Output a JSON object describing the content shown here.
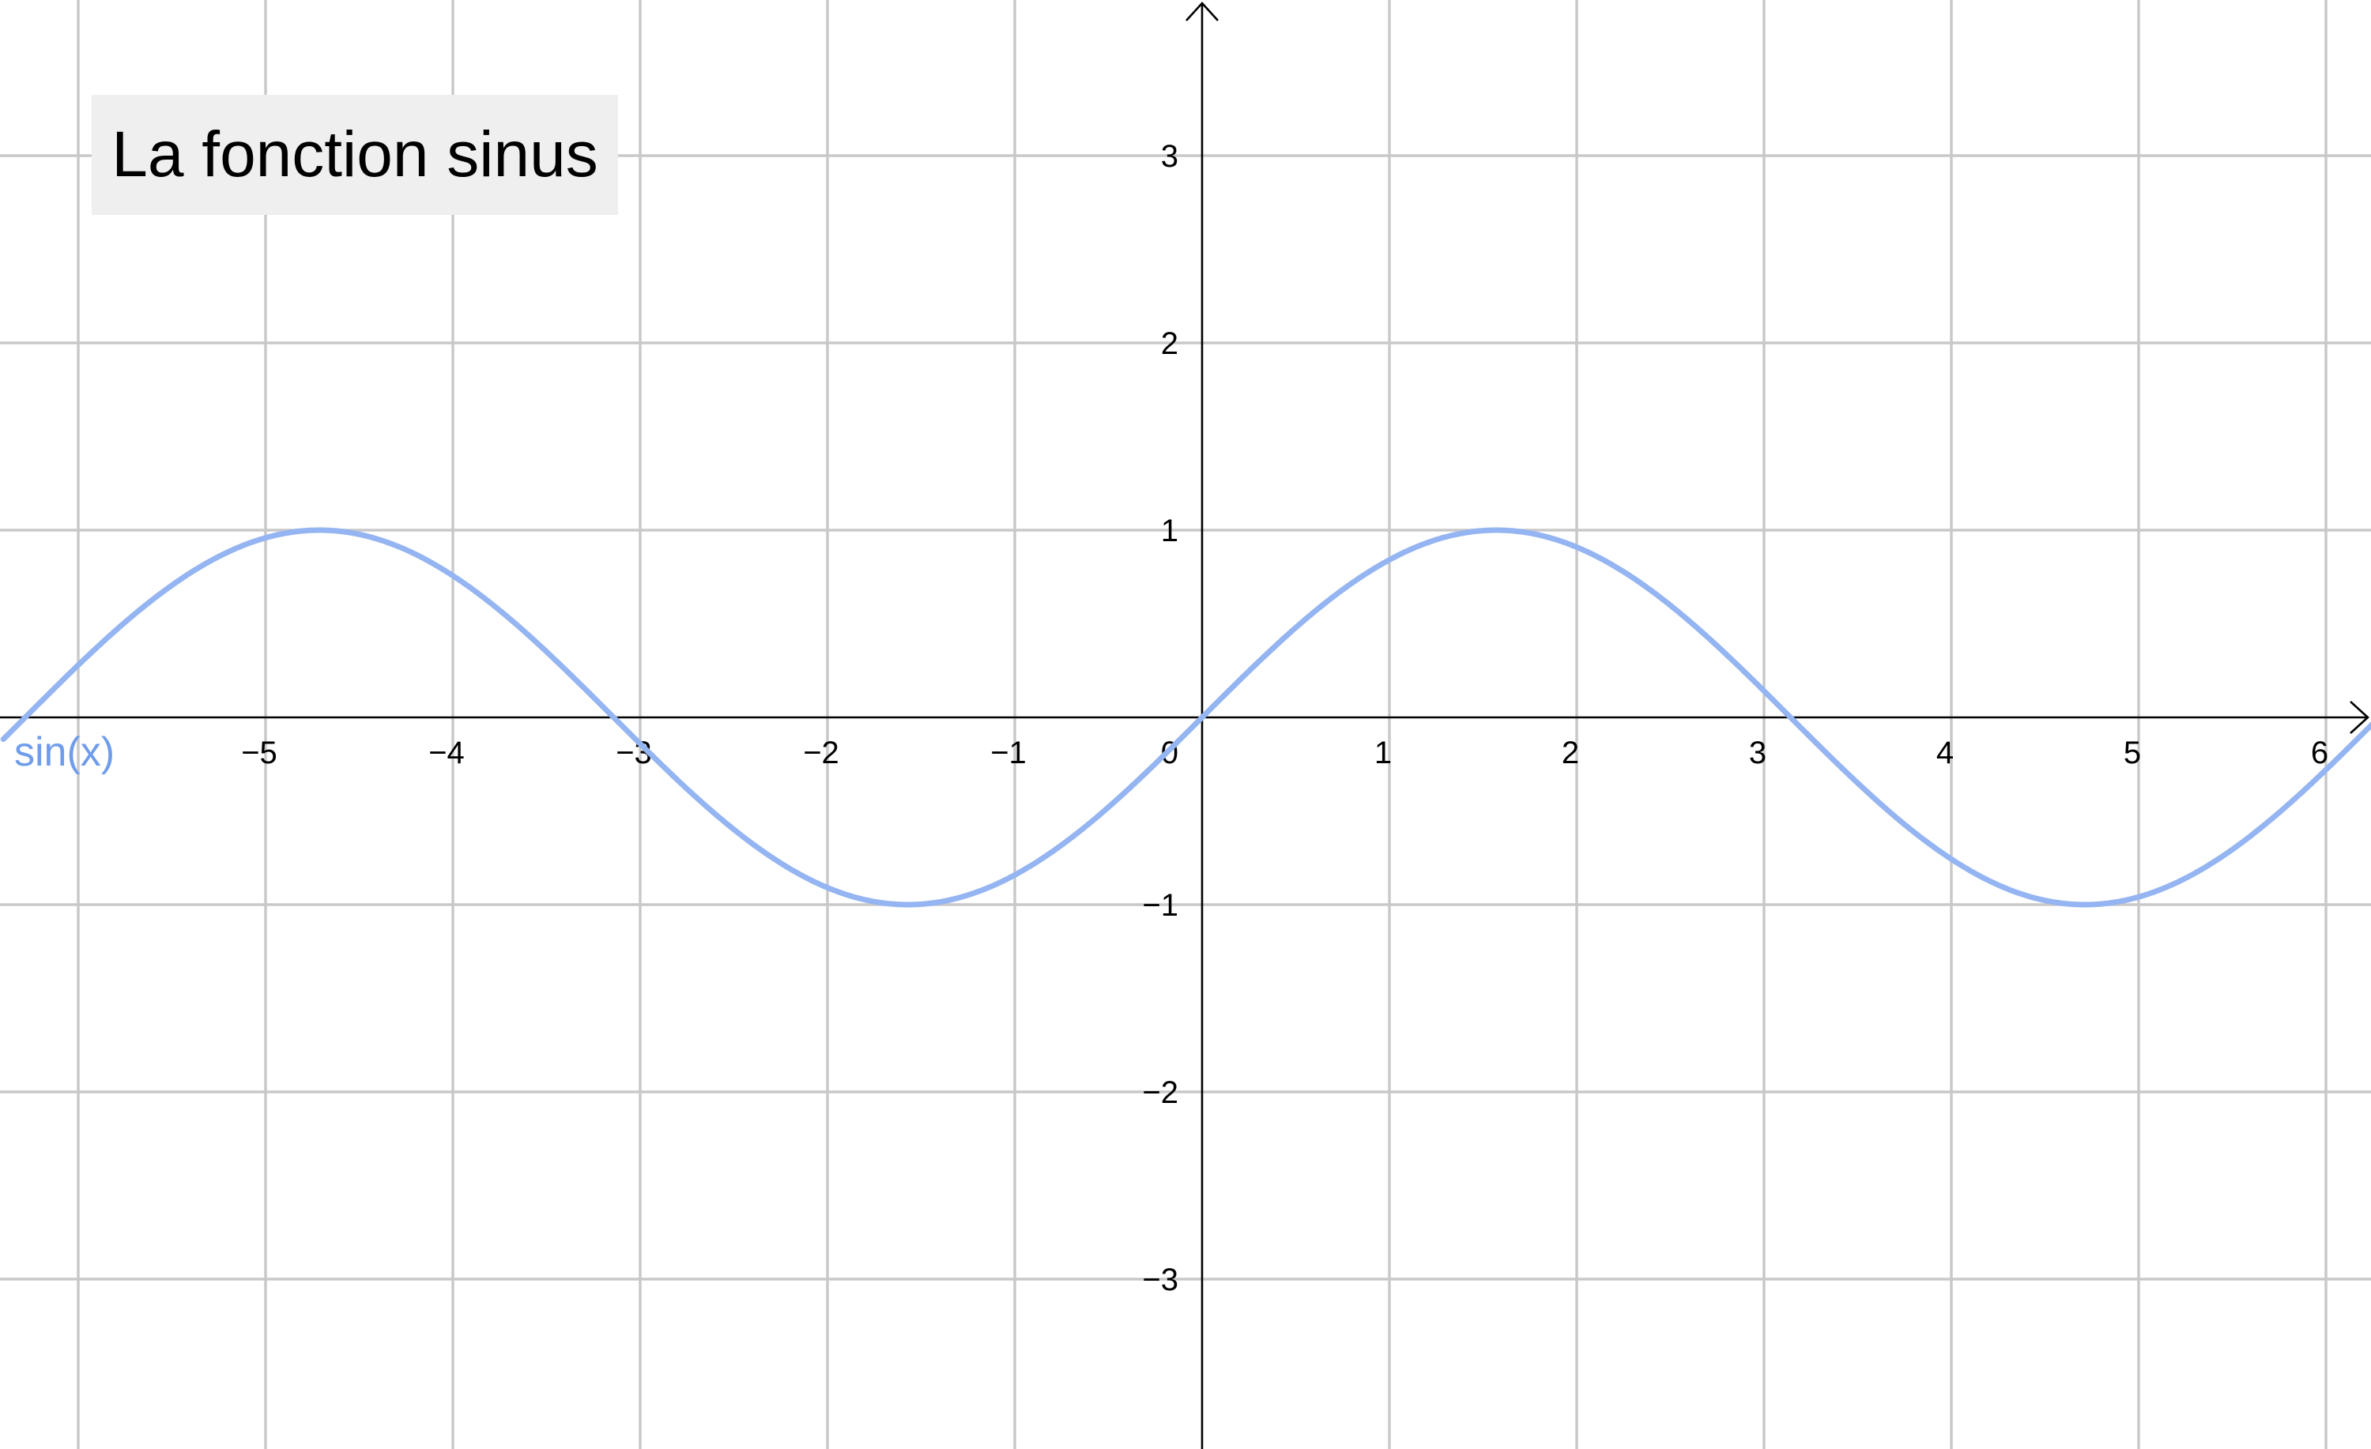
{
  "colors": {
    "curve": "#94b4f2",
    "series_label": "#6f9ceb",
    "grid": "#c8c8c8",
    "axis": "#000000",
    "title_background": "#efefef"
  },
  "chart_data": {
    "type": "line",
    "title": "La fonction sinus",
    "function": "sin(x)",
    "series": [
      {
        "name": "sin(x)",
        "x": [
          -6.4,
          -6.0,
          -5.5,
          -5.0,
          -4.712,
          -4.5,
          -4.0,
          -3.5,
          -3.1416,
          -3.0,
          -2.5,
          -2.0,
          -1.5708,
          -1.5,
          -1.0,
          -0.5,
          0,
          0.5,
          1.0,
          1.5,
          1.5708,
          2.0,
          2.5,
          3.0,
          3.1416,
          3.5,
          4.0,
          4.5,
          4.712,
          5.0,
          5.5,
          6.0,
          6.2
        ],
        "y": [
          -0.117,
          0.279,
          0.706,
          0.959,
          1.0,
          0.978,
          0.757,
          0.351,
          0.0,
          -0.141,
          -0.598,
          -0.909,
          -1.0,
          -0.997,
          -0.841,
          -0.479,
          0.0,
          0.479,
          0.841,
          0.997,
          1.0,
          0.909,
          0.598,
          0.141,
          0.0,
          -0.351,
          -0.757,
          -0.978,
          -1.0,
          -0.959,
          -0.706,
          -0.279,
          -0.083
        ]
      }
    ],
    "xlim": [
      -6.4,
      6.25
    ],
    "ylim": [
      -3.9,
      3.8
    ],
    "x_ticks": [
      -5,
      -4,
      -3,
      -2,
      -1,
      1,
      2,
      3,
      4,
      5,
      6
    ],
    "x_tick_labels": [
      "−5",
      "−4",
      "−3",
      "−2",
      "−1",
      "1",
      "2",
      "3",
      "4",
      "5",
      "6"
    ],
    "y_ticks": [
      -3,
      -2,
      -1,
      1,
      2,
      3
    ],
    "y_tick_labels": [
      "−3",
      "−2",
      "−1",
      "1",
      "2",
      "3"
    ],
    "origin_label": "0",
    "grid": true,
    "xlabel": "",
    "ylabel": ""
  }
}
